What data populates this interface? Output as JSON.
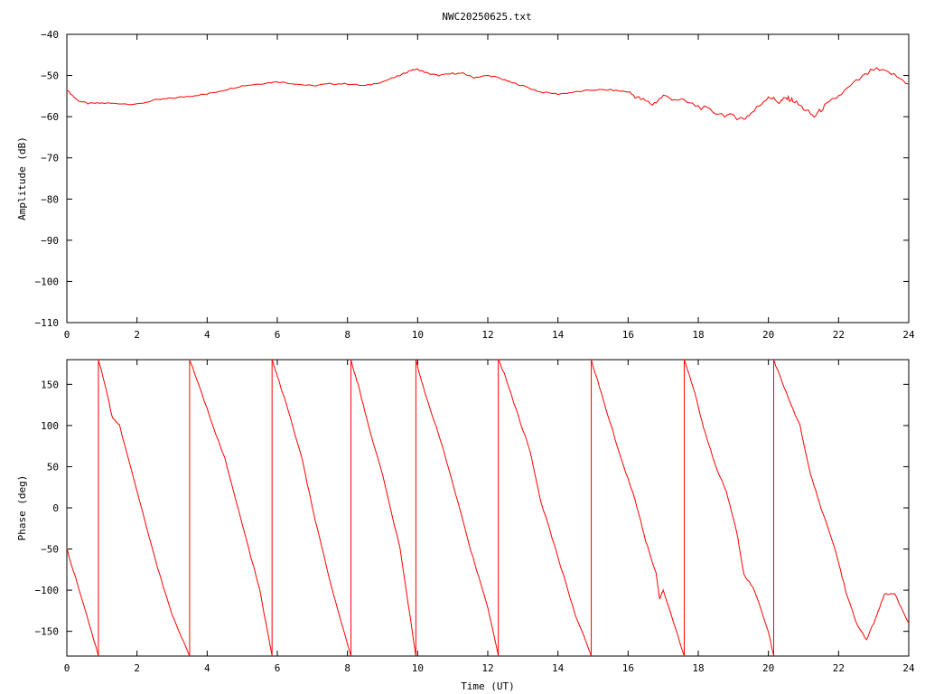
{
  "title": "NWC20250625.txt",
  "chart_data": [
    {
      "type": "line",
      "name": "amplitude",
      "ylabel": "Amplitude (dB)",
      "xlabel": "",
      "xlim": [
        0,
        24
      ],
      "ylim": [
        -110,
        -40
      ],
      "xticks": [
        "0",
        "2",
        "4",
        "6",
        "8",
        "10",
        "12",
        "14",
        "16",
        "18",
        "20",
        "22",
        "24"
      ],
      "yticks": [
        "-40",
        "-50",
        "-60",
        "-70",
        "-80",
        "-90",
        "-100",
        "-110"
      ],
      "x": [
        0,
        0.3,
        0.6,
        1,
        1.5,
        2,
        2.5,
        3,
        3.5,
        4,
        4.5,
        5,
        5.5,
        6,
        6.5,
        7,
        7.5,
        8,
        8.5,
        9,
        9.5,
        9.8,
        10,
        10.3,
        10.6,
        11,
        11.3,
        11.6,
        12,
        12.3,
        12.6,
        13,
        13.5,
        14,
        14.5,
        15,
        15.5,
        16,
        16.3,
        16.7,
        17,
        17.5,
        18,
        18.5,
        19,
        19.3,
        19.6,
        20,
        20.3,
        20.5,
        20.7,
        21,
        21.3,
        21.6,
        22,
        22.5,
        23,
        23.5,
        24
      ],
      "y": [
        -53.5,
        -56,
        -56.8,
        -56.7,
        -56.8,
        -57,
        -56,
        -55.5,
        -55,
        -54.5,
        -53.5,
        -52.5,
        -52,
        -51.5,
        -52,
        -52.5,
        -52,
        -52,
        -52.5,
        -51.5,
        -50,
        -48.7,
        -48.5,
        -49.5,
        -50,
        -49.5,
        -49.5,
        -50.5,
        -50,
        -50.5,
        -51.5,
        -52.5,
        -54,
        -54.5,
        -54,
        -53.5,
        -53.5,
        -54,
        -55.5,
        -57,
        -55,
        -56,
        -57.5,
        -59,
        -60,
        -60.5,
        -58.5,
        -55,
        -56.5,
        -55.5,
        -56,
        -58,
        -60,
        -57.5,
        -55,
        -51.5,
        -48.5,
        -49.5,
        -52
      ]
    },
    {
      "type": "line",
      "name": "phase",
      "ylabel": "Phase (deg)",
      "xlabel": "Time (UT)",
      "xlim": [
        0,
        24
      ],
      "ylim": [
        -180,
        180
      ],
      "xticks": [
        "0",
        "2",
        "4",
        "6",
        "8",
        "10",
        "12",
        "14",
        "16",
        "18",
        "20",
        "22",
        "24"
      ],
      "yticks": [
        "150",
        "100",
        "50",
        "0",
        "-50",
        "-100",
        "-150"
      ],
      "segments": [
        {
          "x": [
            0,
            0.5,
            0.9
          ],
          "y": [
            -50,
            -120,
            -180
          ]
        },
        {
          "x": [
            0.9,
            1.0,
            1.3,
            1.5,
            2.0,
            2.5,
            3.0,
            3.5
          ],
          "y": [
            180,
            165,
            110,
            100,
            20,
            -60,
            -130,
            -180
          ]
        },
        {
          "x": [
            3.5,
            4.0,
            4.5,
            5.0,
            5.5,
            5.85
          ],
          "y": [
            180,
            120,
            60,
            -20,
            -100,
            -180
          ]
        },
        {
          "x": [
            5.85,
            6.0,
            6.3,
            6.7,
            7.0,
            7.5,
            8.1
          ],
          "y": [
            180,
            160,
            120,
            60,
            0,
            -90,
            -180
          ]
        },
        {
          "x": [
            8.1,
            8.3,
            8.6,
            9.0,
            9.5,
            9.95
          ],
          "y": [
            180,
            150,
            100,
            40,
            -50,
            -180
          ]
        },
        {
          "x": [
            9.95,
            10.2,
            10.6,
            11.0,
            11.5,
            12.0,
            12.3
          ],
          "y": [
            180,
            140,
            90,
            30,
            -50,
            -120,
            -180
          ]
        },
        {
          "x": [
            12.3,
            12.5,
            12.8,
            13.2,
            13.5,
            14.0,
            14.5,
            14.95
          ],
          "y": [
            180,
            160,
            120,
            70,
            10,
            -60,
            -130,
            -180
          ]
        },
        {
          "x": [
            14.95,
            15.3,
            15.8,
            16.2,
            16.5,
            16.8,
            16.9,
            17.0,
            17.6
          ],
          "y": [
            180,
            130,
            60,
            10,
            -40,
            -80,
            -110,
            -100,
            -180
          ]
        },
        {
          "x": [
            17.6,
            17.9,
            18.2,
            18.5,
            18.8,
            19.1,
            19.3,
            19.6,
            20.0,
            20.15
          ],
          "y": [
            180,
            140,
            90,
            50,
            20,
            -30,
            -80,
            -100,
            -150,
            -180
          ]
        },
        {
          "x": [
            20.15,
            20.5,
            20.9,
            21.2,
            21.5,
            21.9,
            22.2,
            22.5,
            22.8,
            23.1,
            23.3,
            23.6,
            24.0
          ],
          "y": [
            180,
            140,
            100,
            40,
            0,
            -50,
            -100,
            -140,
            -160,
            -130,
            -105,
            -105,
            -140
          ]
        }
      ],
      "wraps": [
        0.9,
        3.5,
        5.85,
        8.1,
        9.95,
        12.3,
        14.95,
        17.6,
        20.15
      ]
    }
  ]
}
